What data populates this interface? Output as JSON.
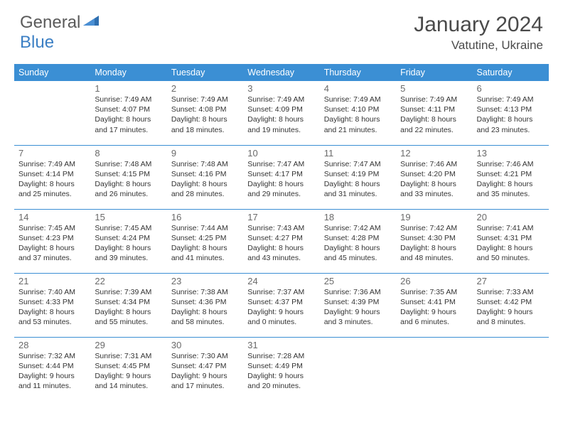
{
  "logo": {
    "part1": "General",
    "part2": "Blue"
  },
  "title": "January 2024",
  "location": "Vatutine, Ukraine",
  "colors": {
    "header_bg": "#3b8fd4",
    "header_text": "#ffffff",
    "row_divider": "#3b8fd4",
    "logo_gray": "#5a5a5a",
    "logo_blue": "#3b7fc4",
    "title_color": "#4a4a4a",
    "text_color": "#333333",
    "daynum_color": "#6a6a6a"
  },
  "weekdays": [
    "Sunday",
    "Monday",
    "Tuesday",
    "Wednesday",
    "Thursday",
    "Friday",
    "Saturday"
  ],
  "weeks": [
    [
      null,
      {
        "day": "1",
        "sunrise": "7:49 AM",
        "sunset": "4:07 PM",
        "daylight": "8 hours and 17 minutes."
      },
      {
        "day": "2",
        "sunrise": "7:49 AM",
        "sunset": "4:08 PM",
        "daylight": "8 hours and 18 minutes."
      },
      {
        "day": "3",
        "sunrise": "7:49 AM",
        "sunset": "4:09 PM",
        "daylight": "8 hours and 19 minutes."
      },
      {
        "day": "4",
        "sunrise": "7:49 AM",
        "sunset": "4:10 PM",
        "daylight": "8 hours and 21 minutes."
      },
      {
        "day": "5",
        "sunrise": "7:49 AM",
        "sunset": "4:11 PM",
        "daylight": "8 hours and 22 minutes."
      },
      {
        "day": "6",
        "sunrise": "7:49 AM",
        "sunset": "4:13 PM",
        "daylight": "8 hours and 23 minutes."
      }
    ],
    [
      {
        "day": "7",
        "sunrise": "7:49 AM",
        "sunset": "4:14 PM",
        "daylight": "8 hours and 25 minutes."
      },
      {
        "day": "8",
        "sunrise": "7:48 AM",
        "sunset": "4:15 PM",
        "daylight": "8 hours and 26 minutes."
      },
      {
        "day": "9",
        "sunrise": "7:48 AM",
        "sunset": "4:16 PM",
        "daylight": "8 hours and 28 minutes."
      },
      {
        "day": "10",
        "sunrise": "7:47 AM",
        "sunset": "4:17 PM",
        "daylight": "8 hours and 29 minutes."
      },
      {
        "day": "11",
        "sunrise": "7:47 AM",
        "sunset": "4:19 PM",
        "daylight": "8 hours and 31 minutes."
      },
      {
        "day": "12",
        "sunrise": "7:46 AM",
        "sunset": "4:20 PM",
        "daylight": "8 hours and 33 minutes."
      },
      {
        "day": "13",
        "sunrise": "7:46 AM",
        "sunset": "4:21 PM",
        "daylight": "8 hours and 35 minutes."
      }
    ],
    [
      {
        "day": "14",
        "sunrise": "7:45 AM",
        "sunset": "4:23 PM",
        "daylight": "8 hours and 37 minutes."
      },
      {
        "day": "15",
        "sunrise": "7:45 AM",
        "sunset": "4:24 PM",
        "daylight": "8 hours and 39 minutes."
      },
      {
        "day": "16",
        "sunrise": "7:44 AM",
        "sunset": "4:25 PM",
        "daylight": "8 hours and 41 minutes."
      },
      {
        "day": "17",
        "sunrise": "7:43 AM",
        "sunset": "4:27 PM",
        "daylight": "8 hours and 43 minutes."
      },
      {
        "day": "18",
        "sunrise": "7:42 AM",
        "sunset": "4:28 PM",
        "daylight": "8 hours and 45 minutes."
      },
      {
        "day": "19",
        "sunrise": "7:42 AM",
        "sunset": "4:30 PM",
        "daylight": "8 hours and 48 minutes."
      },
      {
        "day": "20",
        "sunrise": "7:41 AM",
        "sunset": "4:31 PM",
        "daylight": "8 hours and 50 minutes."
      }
    ],
    [
      {
        "day": "21",
        "sunrise": "7:40 AM",
        "sunset": "4:33 PM",
        "daylight": "8 hours and 53 minutes."
      },
      {
        "day": "22",
        "sunrise": "7:39 AM",
        "sunset": "4:34 PM",
        "daylight": "8 hours and 55 minutes."
      },
      {
        "day": "23",
        "sunrise": "7:38 AM",
        "sunset": "4:36 PM",
        "daylight": "8 hours and 58 minutes."
      },
      {
        "day": "24",
        "sunrise": "7:37 AM",
        "sunset": "4:37 PM",
        "daylight": "9 hours and 0 minutes."
      },
      {
        "day": "25",
        "sunrise": "7:36 AM",
        "sunset": "4:39 PM",
        "daylight": "9 hours and 3 minutes."
      },
      {
        "day": "26",
        "sunrise": "7:35 AM",
        "sunset": "4:41 PM",
        "daylight": "9 hours and 6 minutes."
      },
      {
        "day": "27",
        "sunrise": "7:33 AM",
        "sunset": "4:42 PM",
        "daylight": "9 hours and 8 minutes."
      }
    ],
    [
      {
        "day": "28",
        "sunrise": "7:32 AM",
        "sunset": "4:44 PM",
        "daylight": "9 hours and 11 minutes."
      },
      {
        "day": "29",
        "sunrise": "7:31 AM",
        "sunset": "4:45 PM",
        "daylight": "9 hours and 14 minutes."
      },
      {
        "day": "30",
        "sunrise": "7:30 AM",
        "sunset": "4:47 PM",
        "daylight": "9 hours and 17 minutes."
      },
      {
        "day": "31",
        "sunrise": "7:28 AM",
        "sunset": "4:49 PM",
        "daylight": "9 hours and 20 minutes."
      },
      null,
      null,
      null
    ]
  ],
  "labels": {
    "sunrise_prefix": "Sunrise: ",
    "sunset_prefix": "Sunset: ",
    "daylight_prefix": "Daylight: "
  }
}
